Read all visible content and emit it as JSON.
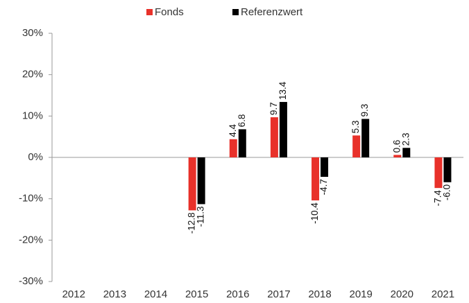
{
  "chart_data": {
    "type": "bar",
    "categories": [
      "2012",
      "2013",
      "2014",
      "2015",
      "2016",
      "2017",
      "2018",
      "2019",
      "2020",
      "2021"
    ],
    "series": [
      {
        "name": "Fonds",
        "color": "#e8312a",
        "values": [
          null,
          null,
          null,
          -12.8,
          4.4,
          9.7,
          -10.4,
          5.3,
          0.6,
          -7.4
        ],
        "value_labels": [
          null,
          null,
          null,
          "-12.8",
          "4.4",
          "9.7",
          "-10.4",
          "5.3",
          "0.6",
          "-7.4"
        ]
      },
      {
        "name": "Referenzwert",
        "color": "#000000",
        "values": [
          null,
          null,
          null,
          -11.3,
          6.8,
          13.4,
          -4.7,
          9.3,
          2.3,
          -6
        ],
        "value_labels": [
          null,
          null,
          null,
          "-11.3",
          "6.8",
          "13.4",
          "-4.7",
          "9.3",
          "2.3",
          "-6.0"
        ]
      }
    ],
    "ylim": [
      -30,
      30
    ],
    "yticks": [
      {
        "value": -30,
        "label": "-30%"
      },
      {
        "value": -20,
        "label": "-20%"
      },
      {
        "value": -10,
        "label": "-10%"
      },
      {
        "value": 0,
        "label": "0%"
      },
      {
        "value": 10,
        "label": "10%"
      },
      {
        "value": 20,
        "label": "20%"
      },
      {
        "value": 30,
        "label": "30%"
      }
    ],
    "legend": "top"
  }
}
